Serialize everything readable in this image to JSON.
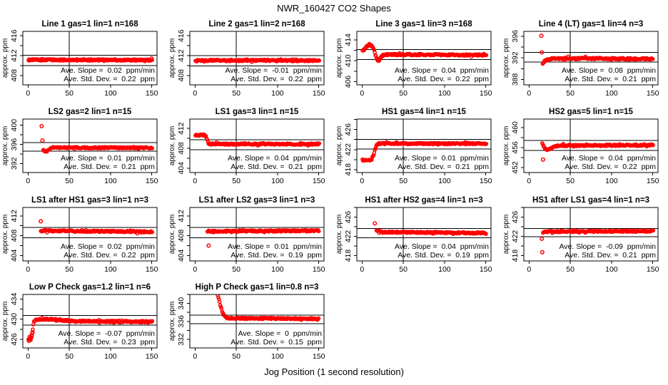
{
  "page": {
    "title": "NWR_160427  CO2 Shapes",
    "xlabel": "Jog Position (1 second resolution)",
    "background_color": "#ffffff"
  },
  "chart_data": {
    "type": "scatter",
    "point_color": "#FF0000",
    "axis_color": "#000000",
    "marker": "open-circle",
    "grid": "off",
    "x_ticks": [
      0,
      50,
      100,
      150
    ],
    "xlim": [
      -6.3,
      156.3
    ],
    "y_axis_label": "approx. ppm",
    "x_axis_label": "Jog Position (1 second resolution)",
    "plots": [
      {
        "title": "Line 1 gas=1 lin=1 n=168",
        "row": 0,
        "col": 0,
        "yticks": [
          408,
          412,
          416
        ],
        "ylim": [
          406.1,
          416.9
        ],
        "hlines": [
          412.1,
          410.0
        ],
        "vline": 50,
        "slope": 0.02,
        "sd": 0.22,
        "slope_text": "Ave. Slope =  0.02  ppm/min",
        "sd_text": "Ave. Std. Dev. =  0.22  ppm",
        "band": [
          [
            0.5,
            411.15
          ],
          [
            150.5,
            411.1
          ]
        ],
        "outliers": []
      },
      {
        "title": "Line 2 gas=1 lin=2 n=168",
        "row": 0,
        "col": 1,
        "yticks": [
          408,
          412,
          416
        ],
        "ylim": [
          406.1,
          416.9
        ],
        "hlines": [
          412.0,
          409.9
        ],
        "vline": 50,
        "slope": -0.01,
        "sd": 0.22,
        "slope_text": "Ave. Slope =  -0.01  ppm/min",
        "sd_text": "Ave. Std. Dev. =  0.22  ppm",
        "band": [
          [
            0.5,
            411.05
          ],
          [
            150.5,
            411.0
          ]
        ],
        "outliers": []
      },
      {
        "title": "Line 3 gas=1 lin=3 n=168",
        "row": 0,
        "col": 2,
        "yticks": [
          406,
          410,
          414
        ],
        "ylim": [
          405.4,
          415.6
        ],
        "hlines": [
          412.1,
          410.2
        ],
        "vline": 50,
        "slope": 0.04,
        "sd": 0.22,
        "slope_text": "Ave. Slope =  0.04  ppm/min",
        "sd_text": "Ave. Std. Dev. =  0.22  ppm",
        "band": [
          [
            0.5,
            411.85
          ],
          [
            3,
            412.2
          ],
          [
            6,
            412.8
          ],
          [
            9,
            413.0
          ],
          [
            12,
            412.9
          ],
          [
            14,
            412.3
          ],
          [
            16,
            411.3
          ],
          [
            18,
            410.3
          ],
          [
            20,
            410.0
          ],
          [
            22,
            410.4
          ],
          [
            25,
            411.0
          ],
          [
            28,
            411.2
          ],
          [
            150.5,
            411.1
          ]
        ],
        "outliers": []
      },
      {
        "title": "Line 4 (LT) gas=1 lin=4 n=3",
        "row": 0,
        "col": 3,
        "yticks": [
          388,
          392,
          396
        ],
        "ylim": [
          387.0,
          396.9
        ],
        "hlines": [
          393.0,
          391.2
        ],
        "vline": 50,
        "slope": 0.08,
        "sd": 0.21,
        "slope_text": "Ave. Slope =  0.08  ppm/min",
        "sd_text": "Ave. Std. Dev. =  0.21  ppm",
        "band": [
          [
            16.5,
            391.0
          ],
          [
            19,
            391.3
          ],
          [
            23,
            391.7
          ],
          [
            28,
            391.9
          ],
          [
            150.5,
            391.8
          ]
        ],
        "outliers": [
          [
            15,
            396.1
          ],
          [
            15.5,
            393.0
          ]
        ]
      },
      {
        "title": "LS2 gas=2 lin=1 n=15",
        "row": 1,
        "col": 0,
        "yticks": [
          392,
          396,
          400
        ],
        "ylim": [
          390.1,
          401.3
        ],
        "hlines": [
          396.4,
          394.6
        ],
        "vline": 50,
        "slope": 0.01,
        "sd": 0.21,
        "slope_text": "Ave. Slope =  0.01  ppm/min",
        "sd_text": "Ave. Std. Dev. =  0.21  ppm",
        "band": [
          [
            18.5,
            394.9
          ],
          [
            20,
            394.6
          ],
          [
            23,
            394.6
          ],
          [
            26,
            395.0
          ],
          [
            30,
            395.3
          ],
          [
            150.5,
            395.3
          ]
        ],
        "outliers": [
          [
            16.5,
            399.8
          ],
          [
            17.5,
            396.8
          ]
        ]
      },
      {
        "title": "LS1 gas=3 lin=1 n=15",
        "row": 1,
        "col": 1,
        "yticks": [
          404,
          408,
          412
        ],
        "ylim": [
          403.1,
          413.9
        ],
        "hlines": [
          409.7,
          407.7
        ],
        "vline": 50,
        "slope": 0.04,
        "sd": 0.21,
        "slope_text": "Ave. Slope =  0.04  ppm/min",
        "sd_text": "Ave. Std. Dev. =  0.21  ppm",
        "band": [
          [
            0.5,
            410.6
          ],
          [
            12,
            410.7
          ],
          [
            14,
            410.1
          ],
          [
            16,
            409.1
          ],
          [
            18,
            408.85
          ],
          [
            150.5,
            408.85
          ]
        ],
        "outliers": []
      },
      {
        "title": "HS1 gas=4 lin=1 n=15",
        "row": 1,
        "col": 2,
        "yticks": [
          418,
          422,
          426
        ],
        "ylim": [
          417.4,
          428.1
        ],
        "hlines": [
          424.0,
          422.1
        ],
        "vline": 50,
        "slope": 0.01,
        "sd": 0.21,
        "slope_text": "Ave. Slope =  0.01  ppm/min",
        "sd_text": "Ave. Std. Dev. =  0.21  ppm",
        "band": [
          [
            0.5,
            419.9
          ],
          [
            11,
            419.9
          ],
          [
            13,
            420.4
          ],
          [
            15,
            421.5
          ],
          [
            17,
            422.7
          ],
          [
            19,
            423.1
          ],
          [
            22,
            423.2
          ],
          [
            150.5,
            423.2
          ]
        ],
        "outliers": []
      },
      {
        "title": "HS2 gas=5 lin=1 n=15",
        "row": 1,
        "col": 3,
        "yticks": [
          452,
          456,
          460
        ],
        "ylim": [
          451.0,
          461.7
        ],
        "hlines": [
          457.4,
          455.4
        ],
        "vline": 50,
        "slope": 0.04,
        "sd": 0.22,
        "slope_text": "Ave. Slope =  0.04  ppm/min",
        "sd_text": "Ave. Std. Dev. =  0.22  ppm",
        "band": [
          [
            16,
            457.0
          ],
          [
            18,
            456.1
          ],
          [
            20,
            455.6
          ],
          [
            24,
            455.6
          ],
          [
            28,
            456.0
          ],
          [
            34,
            456.3
          ],
          [
            42,
            456.4
          ],
          [
            150.5,
            456.5
          ]
        ],
        "outliers": [
          [
            17,
            453.6
          ]
        ]
      },
      {
        "title": "LS1 after HS1 gas=3 lin=1 n=3",
        "row": 2,
        "col": 0,
        "yticks": [
          404,
          408,
          412
        ],
        "ylim": [
          402.9,
          413.7
        ],
        "hlines": [
          409.7,
          407.6
        ],
        "vline": 50,
        "slope": 0.02,
        "sd": 0.22,
        "slope_text": "Ave. Slope =  0.02  ppm/min",
        "sd_text": "Ave. Std. Dev. =  0.22  ppm",
        "band": [
          [
            15.5,
            409.0
          ],
          [
            150.5,
            408.8
          ]
        ],
        "outliers": [
          [
            15.5,
            410.9
          ]
        ]
      },
      {
        "title": "LS1 after LS2 gas=3 lin=1 n=3",
        "row": 2,
        "col": 1,
        "yticks": [
          404,
          408,
          412
        ],
        "ylim": [
          402.9,
          413.7
        ],
        "hlines": [
          409.7,
          407.6
        ],
        "vline": 50,
        "slope": 0.01,
        "sd": 0.19,
        "slope_text": "Ave. Slope =  0.01  ppm/min",
        "sd_text": "Ave. Std. Dev. =  0.19  ppm",
        "band": [
          [
            15,
            408.9
          ],
          [
            150.5,
            409.0
          ]
        ],
        "outliers": [
          [
            16.5,
            406.0
          ]
        ]
      },
      {
        "title": "HS1 after HS2 gas=4 lin=1 n=3",
        "row": 2,
        "col": 2,
        "yticks": [
          418,
          422,
          426
        ],
        "ylim": [
          416.9,
          428.0
        ],
        "hlines": [
          423.6,
          421.7
        ],
        "vline": 50,
        "slope": 0.04,
        "sd": 0.19,
        "slope_text": "Ave. Slope =  0.04  ppm/min",
        "sd_text": "Ave. Std. Dev. =  0.19  ppm",
        "band": [
          [
            17.5,
            423.3
          ],
          [
            21,
            423.0
          ],
          [
            28,
            422.9
          ],
          [
            150.5,
            422.7
          ]
        ],
        "outliers": [
          [
            15.5,
            424.7
          ]
        ]
      },
      {
        "title": "HS1 after LS1 gas=4 lin=1 n=3",
        "row": 2,
        "col": 3,
        "yticks": [
          418,
          422,
          426
        ],
        "ylim": [
          416.9,
          428.0
        ],
        "hlines": [
          423.6,
          421.9
        ],
        "vline": 50,
        "slope": -0.09,
        "sd": 0.21,
        "slope_text": "Ave. Slope =  -0.09  ppm/min",
        "sd_text": "Ave. Std. Dev. =  0.21  ppm",
        "band": [
          [
            17,
            422.9
          ],
          [
            21,
            423.0
          ],
          [
            150.5,
            423.1
          ]
        ],
        "outliers": [
          [
            15.5,
            421.5
          ],
          [
            16,
            418.7
          ]
        ]
      },
      {
        "title": "Low P Check gas=1.2 lin=1 n=6",
        "row": 3,
        "col": 0,
        "yticks": [
          426,
          430,
          434
        ],
        "ylim": [
          424.3,
          434.9
        ],
        "hlines": [
          430.7,
          428.8
        ],
        "vline": 50,
        "slope": -0.07,
        "sd": 0.23,
        "slope_text": "Ave. Slope =  -0.07  ppm/min",
        "sd_text": "Ave. Std. Dev. =  0.23  ppm",
        "band": [
          [
            0.5,
            426.0
          ],
          [
            4,
            426.3
          ],
          [
            5,
            427.1
          ],
          [
            6,
            428.4
          ],
          [
            7,
            429.4
          ],
          [
            9,
            429.9
          ],
          [
            14,
            430.0
          ],
          [
            32,
            430.0
          ],
          [
            40,
            429.8
          ],
          [
            55,
            429.6
          ],
          [
            150.5,
            429.5
          ]
        ],
        "outliers": [
          [
            1,
            425.7
          ],
          [
            2,
            426.5
          ],
          [
            3,
            425.9
          ],
          [
            4.5,
            426.8
          ],
          [
            5.5,
            427.4
          ]
        ]
      },
      {
        "title": "High P Check gas=1 lin=0.8 n=3",
        "row": 3,
        "col": 1,
        "yticks": [
          332,
          336,
          340
        ],
        "ylim": [
          330.1,
          342.0
        ],
        "hlines": [
          337.4,
          335.5
        ],
        "vline": 50,
        "slope": 0,
        "sd": 0.15,
        "slope_text": "Ave. Slope =  0  ppm/min",
        "sd_text": "Ave. Std. Dev. =  0.15  ppm",
        "band": [
          [
            26.8,
            342.4
          ],
          [
            28,
            341.5
          ],
          [
            29,
            340.8
          ],
          [
            30,
            340.1
          ],
          [
            31,
            339.4
          ],
          [
            32,
            338.8
          ],
          [
            33,
            338.2
          ],
          [
            34,
            337.7
          ],
          [
            35.5,
            337.2
          ],
          [
            37.5,
            336.9
          ],
          [
            40,
            336.7
          ],
          [
            150.5,
            336.6
          ]
        ],
        "outliers": []
      }
    ]
  }
}
